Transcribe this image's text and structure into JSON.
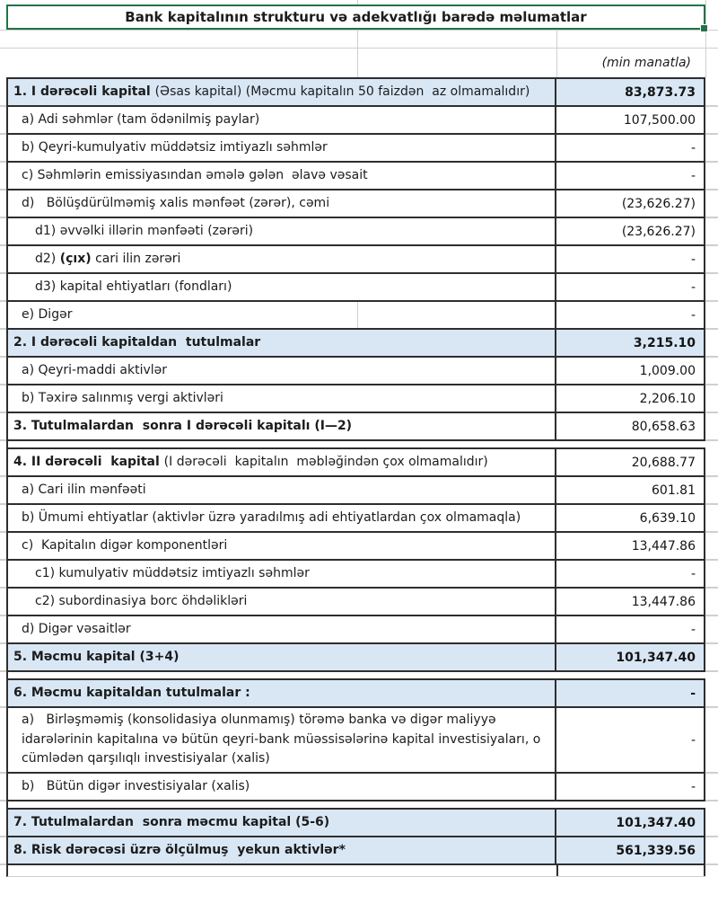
{
  "colors": {
    "section_bg": "#d9e7f5",
    "selection_green": "#217346",
    "grid": "#cfcfcf",
    "cell_border": "#2e2e2e"
  },
  "sheet": {
    "title": "Bank kapitalının strukturu və adekvatlığı barədə məlumatlar",
    "unit_note": "(min manatla)",
    "rows": [
      {
        "kind": "section-blue",
        "indent": 0,
        "parts": [
          {
            "t": "1. I dərəcəli kapital ",
            "b": true
          },
          {
            "t": "(Əsas kapital) (Məcmu kapitalın 50 faizdən  az olmamalıdır)",
            "b": false
          }
        ],
        "value": "83,873.73",
        "value_bold": true
      },
      {
        "kind": "item",
        "indent": 1,
        "parts": [
          {
            "t": "a) Adi səhmlər (tam ödənilmiş paylar)",
            "b": false
          }
        ],
        "value": "107,500.00",
        "value_bold": false
      },
      {
        "kind": "item",
        "indent": 1,
        "parts": [
          {
            "t": "b) Qeyri-kumulyativ müddətsiz imtiyazlı səhmlər",
            "b": false
          }
        ],
        "value": "-",
        "value_bold": false
      },
      {
        "kind": "item",
        "indent": 1,
        "parts": [
          {
            "t": "c) Səhmlərin emissiyasından əmələ gələn  əlavə vəsait",
            "b": false
          }
        ],
        "value": "-",
        "value_bold": false
      },
      {
        "kind": "item",
        "indent": 1,
        "parts": [
          {
            "t": "d)   Bölüşdürülməmiş xalis mənfəət (zərər), cəmi",
            "b": false
          }
        ],
        "value": "(23,626.27)",
        "value_bold": false
      },
      {
        "kind": "item",
        "indent": 2,
        "parts": [
          {
            "t": "d1) əvvəlki illərin mənfəəti (zərəri)",
            "b": false
          }
        ],
        "value": "(23,626.27)",
        "value_bold": false
      },
      {
        "kind": "item",
        "indent": 2,
        "parts": [
          {
            "t": "d2) ",
            "b": false
          },
          {
            "t": "(çıx)",
            "b": true
          },
          {
            "t": " cari ilin zərəri",
            "b": false
          }
        ],
        "value": "-",
        "value_bold": false
      },
      {
        "kind": "item",
        "indent": 2,
        "parts": [
          {
            "t": "d3) kapital ehtiyatları (fondları)",
            "b": false
          }
        ],
        "value": "-",
        "value_bold": false
      },
      {
        "kind": "item",
        "indent": 1,
        "split": true,
        "parts": [
          {
            "t": "e) Digər",
            "b": false
          }
        ],
        "value": "-",
        "value_bold": false
      },
      {
        "kind": "section-blue",
        "indent": 0,
        "parts": [
          {
            "t": "2. I dərəcəli kapitaldan  tutulmalar",
            "b": true
          }
        ],
        "value": "3,215.10",
        "value_bold": true
      },
      {
        "kind": "item",
        "indent": 1,
        "parts": [
          {
            "t": "a) Qeyri-maddi aktivlər",
            "b": false
          }
        ],
        "value": "1,009.00",
        "value_bold": false
      },
      {
        "kind": "item",
        "indent": 1,
        "parts": [
          {
            "t": "b) Təxirə salınmış vergi aktivləri",
            "b": false
          }
        ],
        "value": "2,206.10",
        "value_bold": false
      },
      {
        "kind": "section-plain",
        "indent": 0,
        "parts": [
          {
            "t": "3. Tutulmalardan  sonra I dərəcəli kapitalı (I—2)",
            "b": true
          }
        ],
        "value": "80,658.63",
        "value_bold": false
      },
      {
        "kind": "spacer"
      },
      {
        "kind": "section-plain",
        "indent": 0,
        "parts": [
          {
            "t": "4. II dərəcəli  kapital ",
            "b": true
          },
          {
            "t": "(I dərəcəli  kapitalın  məbləğindən çox olmamalıdır)",
            "b": false
          }
        ],
        "value": "20,688.77",
        "value_bold": false
      },
      {
        "kind": "item",
        "indent": 1,
        "parts": [
          {
            "t": "a) Cari ilin mənfəəti",
            "b": false
          }
        ],
        "value": "601.81",
        "value_bold": false
      },
      {
        "kind": "item",
        "indent": 1,
        "parts": [
          {
            "t": "b) Ümumi ehtiyatlar (aktivlər üzrə yaradılmış adi ehtiyatlardan çox olmamaqla)",
            "b": false
          }
        ],
        "value": "6,639.10",
        "value_bold": false
      },
      {
        "kind": "item",
        "indent": 1,
        "parts": [
          {
            "t": "c)  Kapitalın digər komponentləri",
            "b": false
          }
        ],
        "value": "13,447.86",
        "value_bold": false
      },
      {
        "kind": "item",
        "indent": 2,
        "parts": [
          {
            "t": "c1) kumulyativ müddətsiz imtiyazlı səhmlər",
            "b": false
          }
        ],
        "value": "-",
        "value_bold": false
      },
      {
        "kind": "item",
        "indent": 2,
        "parts": [
          {
            "t": "c2) subordinasiya borc öhdəlikləri",
            "b": false
          }
        ],
        "value": "13,447.86",
        "value_bold": false
      },
      {
        "kind": "item",
        "indent": 1,
        "parts": [
          {
            "t": "d) Digər vəsaitlər",
            "b": false
          }
        ],
        "value": "-",
        "value_bold": false
      },
      {
        "kind": "section-blue",
        "indent": 0,
        "parts": [
          {
            "t": "5. Məcmu kapital (3+4)",
            "b": true
          }
        ],
        "value": "101,347.40",
        "value_bold": true
      },
      {
        "kind": "spacer"
      },
      {
        "kind": "section-blue",
        "indent": 0,
        "parts": [
          {
            "t": "6. Məcmu kapitaldan tutulmalar :",
            "b": true
          }
        ],
        "value": "-",
        "value_bold": true
      },
      {
        "kind": "item",
        "indent": 1,
        "parts": [
          {
            "t": "a)   Birləşməmiş (konsolidasiya olunmamış) törəmə banka və digər maliyyə idarələrinin kapitalına və bütün qeyri-bank müəssisələrinə kapital investisiyaları, o cümlədən qarşılıqlı investisiyalar (xalis)",
            "b": false
          }
        ],
        "value": "-",
        "value_bold": false
      },
      {
        "kind": "item",
        "indent": 1,
        "parts": [
          {
            "t": "b)   Bütün digər investisiyalar (xalis)",
            "b": false
          }
        ],
        "value": "-",
        "value_bold": false
      },
      {
        "kind": "spacer"
      },
      {
        "kind": "section-blue",
        "indent": 0,
        "parts": [
          {
            "t": "7. Tutulmalardan  sonra məcmu kapital (5-6)",
            "b": true
          }
        ],
        "value": "101,347.40",
        "value_bold": true
      },
      {
        "kind": "section-blue",
        "indent": 0,
        "parts": [
          {
            "t": "8. Risk dərəcəsi üzrə ölçülmuş  yekun aktivlər*",
            "b": true
          }
        ],
        "value": "561,339.56",
        "value_bold": true
      }
    ]
  }
}
